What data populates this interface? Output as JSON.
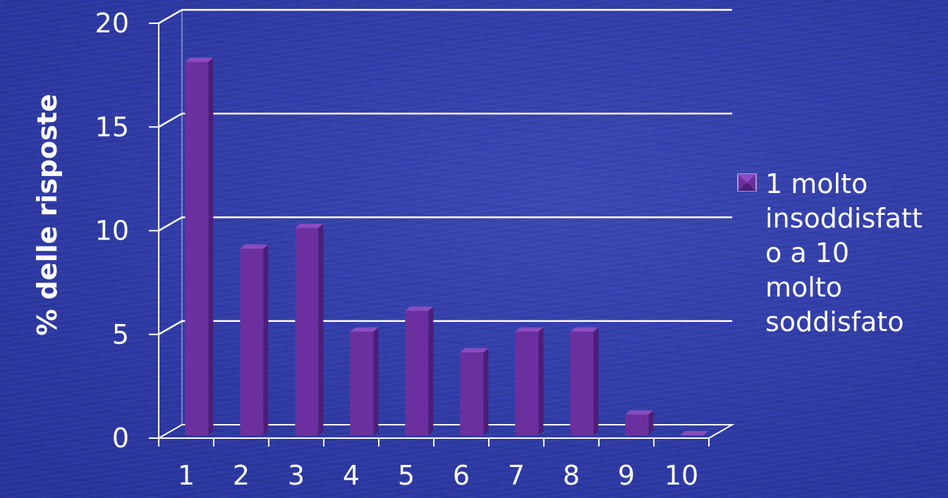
{
  "chart_data": {
    "type": "bar",
    "categories": [
      "1",
      "2",
      "3",
      "4",
      "5",
      "6",
      "7",
      "8",
      "9",
      "10"
    ],
    "series": [
      {
        "name": "1 molto insoddisfatto a 10 molto soddisfato",
        "values": [
          18,
          9,
          10,
          5,
          6,
          4,
          5,
          5,
          1,
          0
        ]
      }
    ],
    "y_ticks": [
      "0",
      "5",
      "10",
      "15",
      "20"
    ],
    "ylim": [
      0,
      20
    ],
    "xlabel": "",
    "ylabel": "% delle risposte",
    "legend_lines": [
      "1 molto",
      "insoddisfatt",
      "o a 10",
      "molto",
      "soddisfato"
    ],
    "legend_position": "right",
    "grid": true,
    "colors": {
      "bar_front": "#6c2fa0",
      "bar_side": "#4b1e78",
      "bar_top": "#8a4cc0",
      "gridline": "#ffffff"
    }
  }
}
